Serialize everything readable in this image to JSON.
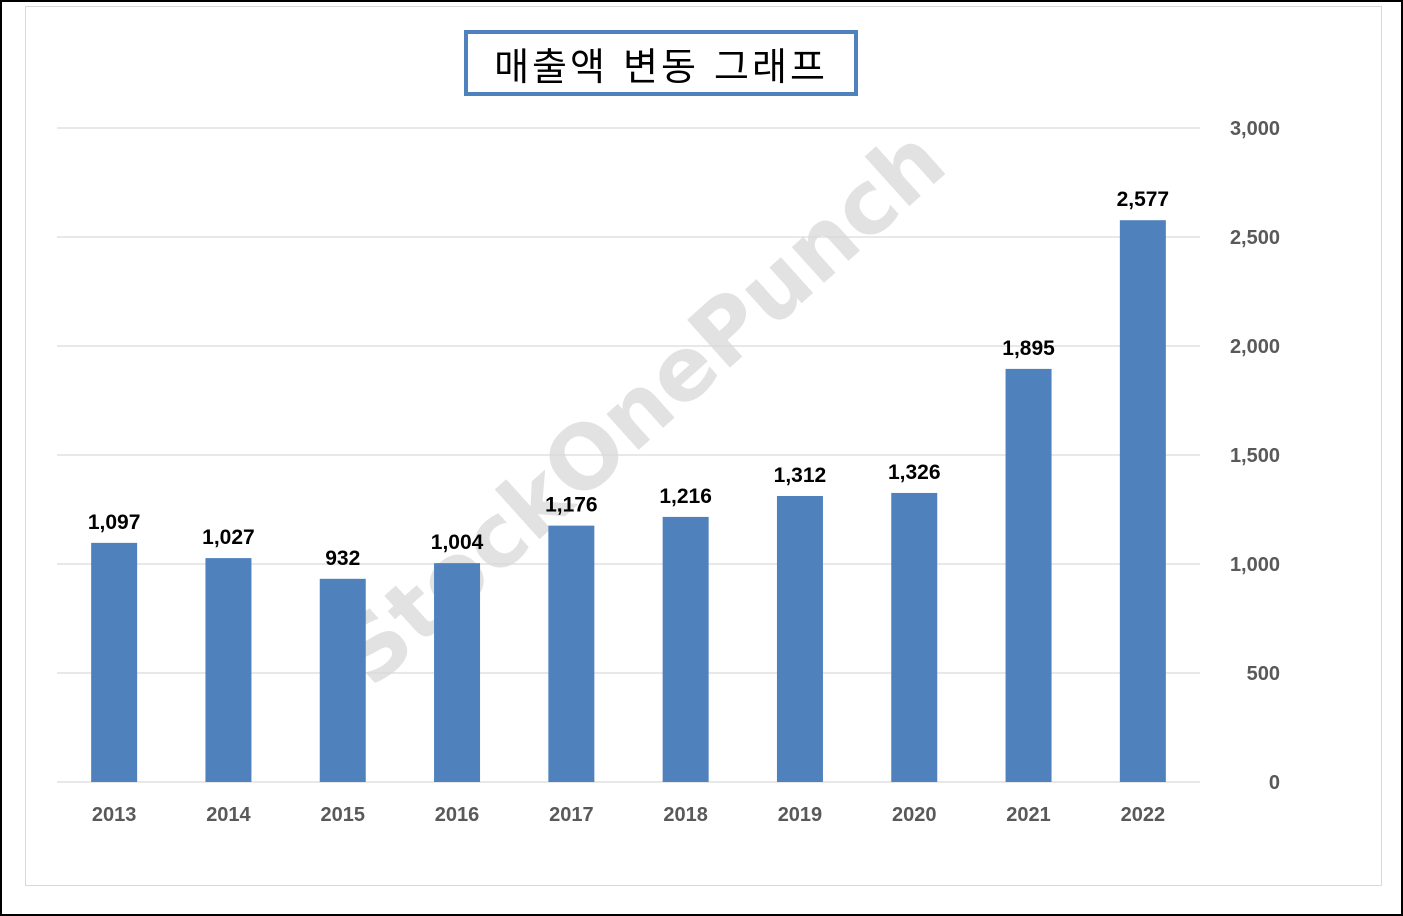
{
  "title": "매출액 변동 그래프",
  "watermark": "StockOnePunch",
  "colors": {
    "bar": "#4f81bd",
    "grid": "#d9d9d9",
    "title_border": "#4f81bd",
    "tick_text": "#595959",
    "label_text": "#000000"
  },
  "chart_data": {
    "type": "bar",
    "title": "매출액 변동 그래프",
    "categories": [
      "2013",
      "2014",
      "2015",
      "2016",
      "2017",
      "2018",
      "2019",
      "2020",
      "2021",
      "2022"
    ],
    "series": [
      {
        "values": [
          1097,
          1027,
          932,
          1004,
          1176,
          1216,
          1312,
          1326,
          1895,
          2577
        ]
      }
    ],
    "data_labels": [
      "1,097",
      "1,027",
      "932",
      "1,004",
      "1,176",
      "1,216",
      "1,312",
      "1,326",
      "1,895",
      "2,577"
    ],
    "y_ticks": [
      0,
      500,
      1000,
      1500,
      2000,
      2500,
      3000
    ],
    "y_tick_labels": [
      "0",
      "500",
      "1,000",
      "1,500",
      "2,000",
      "2,500",
      "3,000"
    ],
    "ylim": [
      0,
      3000
    ],
    "y_axis_position": "right",
    "grid": true,
    "legend": "none",
    "xlabel": "",
    "ylabel": ""
  }
}
